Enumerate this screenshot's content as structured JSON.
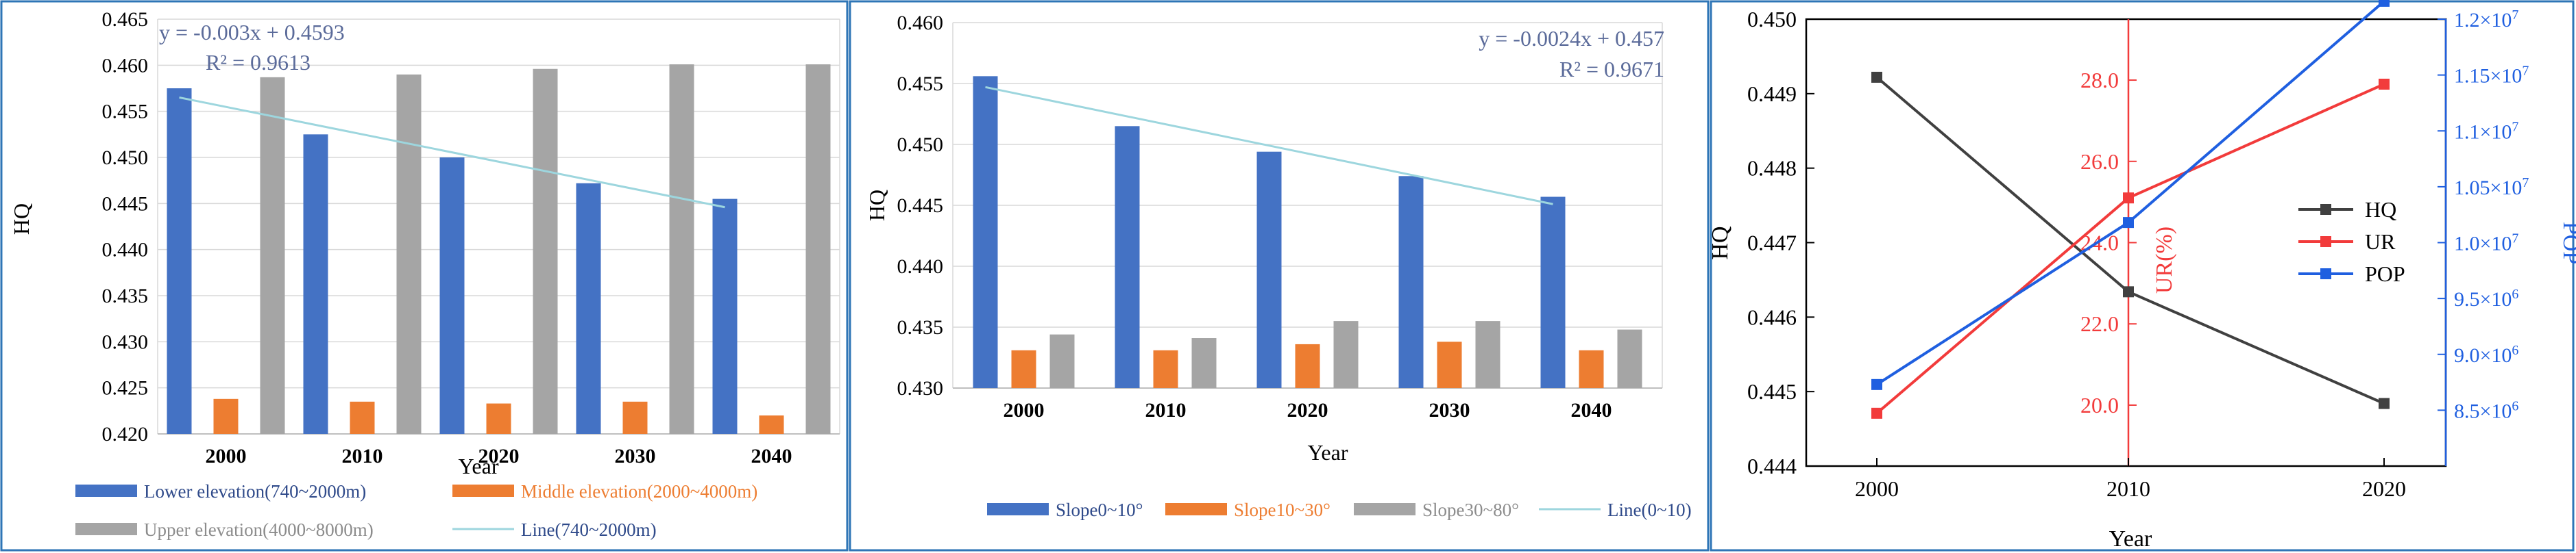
{
  "colors": {
    "blue": "#4472C4",
    "orange": "#ED7D31",
    "gray": "#A5A5A5",
    "trend": "#9DD6DE",
    "frame": "#2E75B6",
    "eq_text": "#5B6B9A",
    "hq_line": "#404040",
    "ur_red": "#F23B3B",
    "pop_blue": "#1F5FE0"
  },
  "chart_data": [
    {
      "type": "bar",
      "title": "",
      "xlabel": "Year",
      "ylabel": "HQ",
      "categories": [
        "2000",
        "2010",
        "2020",
        "2030",
        "2040"
      ],
      "ylim": [
        0.42,
        0.465
      ],
      "yticks": [
        "0.420",
        "0.425",
        "0.430",
        "0.435",
        "0.440",
        "0.445",
        "0.450",
        "0.455",
        "0.460",
        "0.465"
      ],
      "grid": true,
      "series": [
        {
          "name": "Lower elevation(740~2000m)",
          "values": [
            0.4575,
            0.4525,
            0.45,
            0.4472,
            0.4455
          ]
        },
        {
          "name": "Middle elevation(2000~4000m)",
          "values": [
            0.4238,
            0.4235,
            0.4233,
            0.4235,
            0.422
          ]
        },
        {
          "name": "Upper elevation(4000~8000m)",
          "values": [
            0.4587,
            0.459,
            0.4596,
            0.4601,
            0.4601
          ]
        }
      ],
      "trendline": {
        "name": "Line(740~2000m)",
        "y_start": 0.4565,
        "y_end": 0.4446
      },
      "annotation": {
        "equation": "y = -0.003x + 0.4593",
        "r2": "R² = 0.9613"
      },
      "legend_position": "bottom"
    },
    {
      "type": "bar",
      "title": "",
      "xlabel": "Year",
      "ylabel": "HQ",
      "categories": [
        "2000",
        "2010",
        "2020",
        "2030",
        "2040"
      ],
      "ylim": [
        0.43,
        0.46
      ],
      "yticks": [
        "0.430",
        "0.435",
        "0.440",
        "0.445",
        "0.450",
        "0.455",
        "0.460"
      ],
      "grid": true,
      "series": [
        {
          "name": "Slope0~10°",
          "values": [
            0.4556,
            0.4515,
            0.4494,
            0.4474,
            0.4457
          ]
        },
        {
          "name": "Slope10~30°",
          "values": [
            0.4331,
            0.4331,
            0.4336,
            0.4338,
            0.4331
          ]
        },
        {
          "name": "Slope30~80°",
          "values": [
            0.4344,
            0.4341,
            0.4355,
            0.4355,
            0.4348
          ]
        }
      ],
      "trendline": {
        "name": "Line(0~10)",
        "y_start": 0.4547,
        "y_end": 0.4451
      },
      "annotation": {
        "equation": "y = -0.0024x + 0.457",
        "r2": "R² = 0.9671"
      },
      "legend_position": "bottom"
    },
    {
      "type": "line",
      "title": "",
      "xlabel": "Year",
      "x": [
        "2000",
        "2010",
        "2020"
      ],
      "axes": {
        "left": {
          "label": "HQ",
          "range": [
            0.444,
            0.45
          ],
          "ticks": [
            "0.444",
            "0.445",
            "0.446",
            "0.447",
            "0.448",
            "0.449",
            "0.450"
          ]
        },
        "inner": {
          "label": "UR(%)",
          "range": [
            18.5,
            29.5
          ],
          "ticks": [
            "20.0",
            "22.0",
            "24.0",
            "26.0",
            "28.0"
          ]
        },
        "right": {
          "label": "POP",
          "range": [
            8000000,
            12000000
          ],
          "ticks": [
            {
              "mantissa": "8.5",
              "exp": "6"
            },
            {
              "mantissa": "9.0",
              "exp": "6"
            },
            {
              "mantissa": "9.5",
              "exp": "6"
            },
            {
              "mantissa": "1.0",
              "exp": "7"
            },
            {
              "mantissa": "1.05",
              "exp": "7"
            },
            {
              "mantissa": "1.1",
              "exp": "7"
            },
            {
              "mantissa": "1.15",
              "exp": "7"
            },
            {
              "mantissa": "1.2",
              "exp": "7"
            }
          ],
          "tick_base": "×10"
        }
      },
      "series": [
        {
          "name": "HQ",
          "axis": "left",
          "values": [
            0.44922,
            0.44634,
            0.44484
          ]
        },
        {
          "name": "UR",
          "axis": "inner",
          "values": [
            19.8,
            25.1,
            27.9
          ]
        },
        {
          "name": "POP",
          "axis": "right",
          "values": [
            8730000,
            10180000,
            12160000
          ]
        }
      ],
      "legend_position": "center-right"
    }
  ]
}
